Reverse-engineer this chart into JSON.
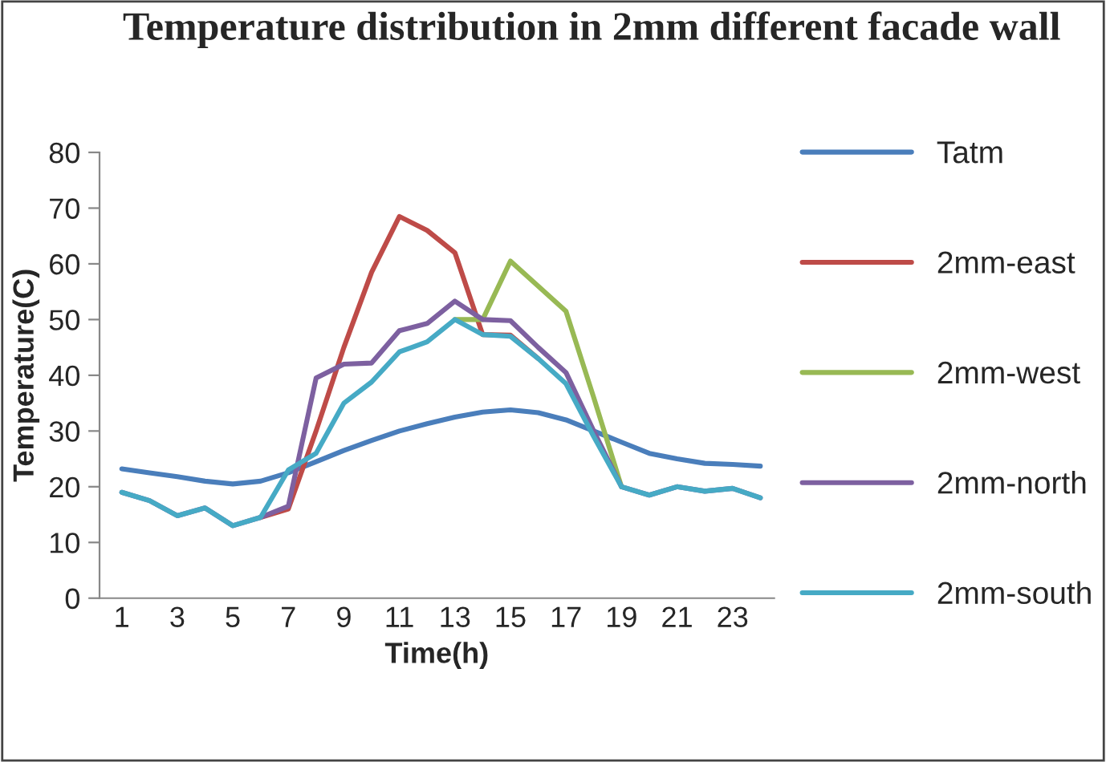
{
  "chart_data": {
    "type": "line",
    "title": "Temperature distribution in 2mm different facade wall",
    "xlabel": "Time(h)",
    "ylabel": "Temperature(C)",
    "categories": [
      "1",
      null,
      "3",
      null,
      "5",
      null,
      "7",
      null,
      "9",
      null,
      "11",
      null,
      "13",
      null,
      "15",
      null,
      "17",
      null,
      "19",
      null,
      "21",
      null,
      "23",
      null
    ],
    "series": [
      {
        "name": "Tatm",
        "color": "#4a7ebb",
        "values": [
          23.2,
          22.5,
          21.8,
          21,
          20.5,
          21,
          22.5,
          24.5,
          26.5,
          28.3,
          30,
          31.3,
          32.5,
          33.4,
          33.8,
          33.3,
          32,
          30,
          28,
          26,
          25,
          24.2,
          24,
          23.7
        ]
      },
      {
        "name": "2mm-east",
        "color": "#be4b48",
        "values": [
          null,
          null,
          null,
          null,
          null,
          14.5,
          16,
          30,
          45,
          58.5,
          68.5,
          66,
          62,
          47.3,
          47.2,
          43,
          null,
          null,
          null,
          null,
          null,
          null,
          null,
          null
        ]
      },
      {
        "name": "2mm-west",
        "color": "#98b954",
        "values": [
          null,
          null,
          null,
          null,
          null,
          null,
          null,
          null,
          null,
          null,
          null,
          null,
          50,
          50,
          60.5,
          56,
          51.5,
          36,
          20,
          null,
          null,
          null,
          null,
          null
        ]
      },
      {
        "name": "2mm-north",
        "color": "#7d60a0",
        "values": [
          19,
          17.5,
          14.8,
          16.2,
          13,
          14.5,
          16.5,
          39.5,
          42,
          42.2,
          48,
          49.3,
          53.3,
          50,
          49.8,
          45,
          40.5,
          30,
          20,
          18.5,
          20,
          19.2,
          19.7,
          18
        ]
      },
      {
        "name": "2mm-south",
        "color": "#46aac5",
        "values": [
          19,
          17.5,
          14.8,
          16.2,
          13,
          14.5,
          23,
          26,
          35,
          38.8,
          44.2,
          46,
          50,
          47.3,
          47,
          43,
          38.5,
          29,
          20,
          18.5,
          20,
          19.2,
          19.7,
          18
        ]
      }
    ],
    "ylim": [
      0,
      80
    ],
    "yticks": [
      0,
      10,
      20,
      30,
      40,
      50,
      60,
      70,
      80
    ],
    "grid": false,
    "legend": "right",
    "marker": "none",
    "line_style": "solid"
  }
}
